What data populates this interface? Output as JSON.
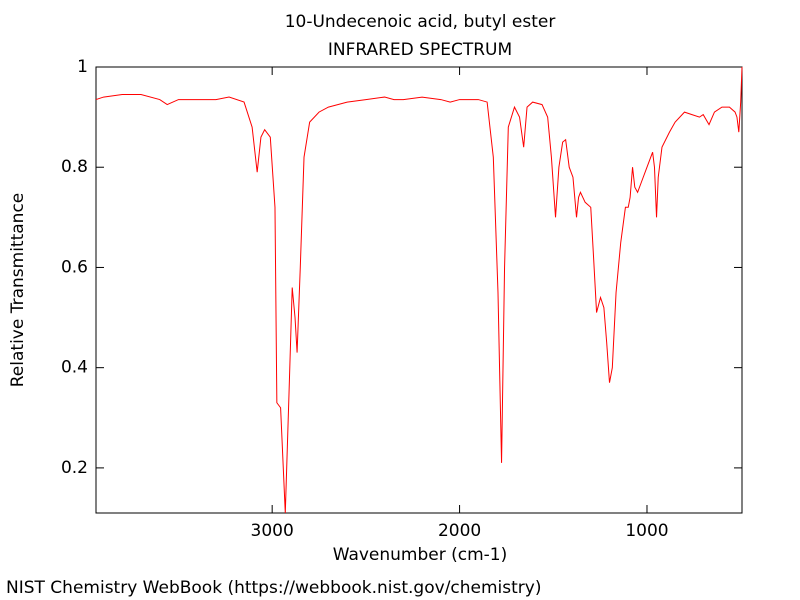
{
  "chart_data": {
    "type": "line",
    "title": "10-Undecenoic acid, butyl ester",
    "subtitle": "INFRARED SPECTRUM",
    "xlabel": "Wavenumber (cm-1)",
    "ylabel": "Relative Transmittance",
    "footer": "NIST Chemistry WebBook (https://webbook.nist.gov/chemistry)",
    "xlim": [
      3940,
      493
    ],
    "ylim": [
      0.11,
      1
    ],
    "xticks": [
      3000,
      2000,
      1000
    ],
    "yticks": [
      0.2,
      0.4,
      0.6,
      0.8,
      1
    ],
    "series": [
      {
        "color": "#ff0000",
        "x": [
          3940,
          3900,
          3800,
          3700,
          3600,
          3560,
          3500,
          3400,
          3300,
          3230,
          3150,
          3107,
          3080,
          3060,
          3040,
          3010,
          2985,
          2975,
          2955,
          2930,
          2910,
          2893,
          2878,
          2867,
          2850,
          2830,
          2800,
          2750,
          2700,
          2600,
          2500,
          2400,
          2350,
          2300,
          2200,
          2100,
          2050,
          2000,
          1900,
          1853,
          1820,
          1795,
          1776,
          1760,
          1740,
          1707,
          1680,
          1658,
          1640,
          1610,
          1560,
          1530,
          1510,
          1488,
          1470,
          1450,
          1434,
          1415,
          1395,
          1376,
          1365,
          1355,
          1330,
          1300,
          1285,
          1269,
          1248,
          1230,
          1215,
          1200,
          1185,
          1165,
          1140,
          1115,
          1100,
          1090,
          1077,
          1065,
          1050,
          1030,
          1000,
          970,
          960,
          949,
          940,
          920,
          880,
          850,
          800,
          760,
          720,
          700,
          669,
          640,
          600,
          560,
          530,
          520,
          510,
          500,
          493
        ],
        "values": [
          0.935,
          0.94,
          0.945,
          0.945,
          0.935,
          0.925,
          0.935,
          0.935,
          0.935,
          0.94,
          0.93,
          0.88,
          0.79,
          0.86,
          0.875,
          0.86,
          0.72,
          0.33,
          0.32,
          0.11,
          0.35,
          0.56,
          0.5,
          0.43,
          0.6,
          0.82,
          0.89,
          0.91,
          0.92,
          0.93,
          0.935,
          0.94,
          0.935,
          0.935,
          0.94,
          0.935,
          0.93,
          0.935,
          0.935,
          0.93,
          0.82,
          0.55,
          0.21,
          0.6,
          0.88,
          0.92,
          0.9,
          0.84,
          0.92,
          0.93,
          0.925,
          0.9,
          0.82,
          0.7,
          0.8,
          0.85,
          0.855,
          0.8,
          0.78,
          0.7,
          0.74,
          0.75,
          0.73,
          0.72,
          0.62,
          0.51,
          0.54,
          0.52,
          0.45,
          0.37,
          0.4,
          0.55,
          0.65,
          0.72,
          0.72,
          0.74,
          0.8,
          0.76,
          0.75,
          0.77,
          0.8,
          0.83,
          0.8,
          0.7,
          0.78,
          0.84,
          0.87,
          0.89,
          0.91,
          0.905,
          0.9,
          0.905,
          0.885,
          0.91,
          0.92,
          0.92,
          0.91,
          0.9,
          0.87,
          0.93,
          1.0
        ]
      }
    ]
  }
}
